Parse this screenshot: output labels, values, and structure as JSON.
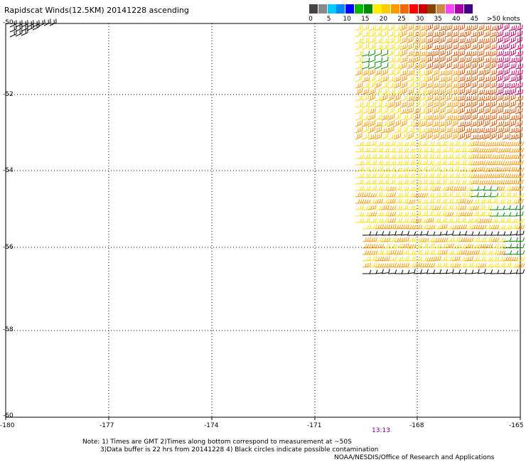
{
  "title": "Rapidscat Winds(12.5KM) 20141228 ascending",
  "colorbar": {
    "labels": [
      "0",
      "5",
      "10",
      "15",
      "20",
      "25",
      "30",
      "35",
      "40",
      "45",
      ">50 knots"
    ],
    "colors": [
      "#444444",
      "#888888",
      "#00ccff",
      "#0088ff",
      "#0000ff",
      "#00bb00",
      "#008800",
      "#ffee00",
      "#ffcc00",
      "#ff9900",
      "#ff6600",
      "#ff0000",
      "#cc0000",
      "#884400",
      "#cc8844",
      "#ff44ff",
      "#aa00aa",
      "#440088"
    ]
  },
  "axes": {
    "lat_labels": [
      "-50",
      "-52",
      "-54",
      "-56",
      "-58",
      "-60"
    ],
    "lon_labels": [
      "-180",
      "-177",
      "-174",
      "-171",
      "-168",
      "-165"
    ]
  },
  "time_label": "13:13",
  "notes": [
    "Note: 1) Times are GMT 2)Times along bottom correspond to measurement at ~50S",
    "3)Data buffer is 22 hrs from 20141228 4) Black circles indicate possible contamination",
    "NOAA/NESDIS/Office of Research and Applications"
  ],
  "wind_colors": {
    "calm": "#000000",
    "green": "#008800",
    "yellow": "#ffdd00",
    "orange": "#ff9900",
    "dark_orange": "#dd5500",
    "red": "#cc0033",
    "magenta": "#cc0066"
  }
}
